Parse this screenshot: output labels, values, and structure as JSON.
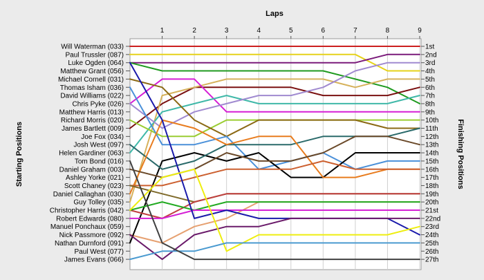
{
  "chart_data": {
    "type": "line",
    "title": "Laps",
    "ylabel_left": "Starting Positions",
    "ylabel_right": "Finishing Positions",
    "laps": [
      "1",
      "2",
      "3",
      "4",
      "5",
      "6",
      "7",
      "8",
      "9"
    ],
    "x_range": [
      0,
      9
    ],
    "y_range": [
      1,
      27
    ],
    "start_labels": [
      "Will Waterman (033)",
      "Paul Trussler (087)",
      "Luke Ogden (064)",
      "Matthew Grant (056)",
      "Michael Cornell (031)",
      "Thomas Isham (036)",
      "David Williams (022)",
      "Chris Pyke (026)",
      "Matthew Harris (013)",
      "Richard Morris (020)",
      "James Bartlett (009)",
      "Joe Fox (034)",
      "Josh West (097)",
      "Helen Gardiner (063)",
      "Tom Bond (016)",
      "Daniel Graham (003)",
      "Ashley Yorke (021)",
      "Scott Chaney (023)",
      "Daniel Callaghan (030)",
      "Guy Tolley (035)",
      "Christopher Harris (042)",
      "Robert Edwards (080)",
      "Manuel Ponchaux (059)",
      "Nick Passmore (092)",
      "Nathan Durnford (091)",
      "Paul West (077)",
      "James Evans (066)"
    ],
    "finish_labels": [
      "1st",
      "2nd",
      "3rd",
      "4th",
      "5th",
      "6th",
      "7th",
      "8th",
      "9th",
      "10th",
      "11th",
      "12th",
      "13th",
      "14th",
      "15th",
      "16th",
      "17th",
      "18th",
      "19th",
      "20th",
      "21st",
      "22nd",
      "23rd",
      "24th",
      "25th",
      "26th",
      "27th"
    ],
    "series": [
      {
        "color": "#cc1f1f",
        "positions": [
          1,
          1,
          1,
          1,
          1,
          1,
          1,
          1,
          1,
          1
        ]
      },
      {
        "color": "#e6d21a",
        "positions": [
          2,
          2,
          2,
          2,
          2,
          2,
          2,
          2,
          4,
          4
        ]
      },
      {
        "color": "#7a1a7a",
        "positions": [
          3,
          3,
          3,
          3,
          3,
          3,
          3,
          3,
          2,
          2
        ]
      },
      {
        "color": "#1f9a1f",
        "positions": [
          3,
          4,
          4,
          4,
          4,
          4,
          4,
          5,
          6,
          8
        ]
      },
      {
        "color": "#e6a070",
        "positions": [
          24,
          25,
          23,
          22,
          20,
          20,
          20,
          20,
          20,
          20
        ]
      },
      {
        "color": "#7a1010",
        "positions": [
          11,
          8,
          6,
          6,
          6,
          6,
          7,
          7,
          7,
          6
        ]
      },
      {
        "color": "#d6b25c",
        "positions": [
          20,
          7,
          6,
          5,
          5,
          5,
          5,
          6,
          5,
          5
        ]
      },
      {
        "color": "#d51fd5",
        "positions": [
          8,
          5,
          5,
          9,
          9,
          9,
          9,
          9,
          9,
          9
        ]
      },
      {
        "color": "#3fb8a8",
        "positions": [
          14,
          9,
          8,
          7,
          8,
          8,
          8,
          8,
          8,
          7
        ]
      },
      {
        "color": "#9acd32",
        "positions": [
          10,
          12,
          12,
          10,
          10,
          10,
          10,
          10,
          10,
          10
        ]
      },
      {
        "color": "#a08ad0",
        "positions": [
          8,
          11,
          9,
          8,
          7,
          7,
          6,
          4,
          3,
          3
        ]
      },
      {
        "color": "#8b6914",
        "positions": [
          5,
          6,
          10,
          12,
          10,
          10,
          10,
          10,
          11,
          11
        ]
      },
      {
        "color": "#4a90d9",
        "positions": [
          6,
          13,
          13,
          12,
          16,
          15,
          14,
          16,
          15,
          15
        ]
      },
      {
        "color": "#000000",
        "positions": [
          25,
          15,
          14,
          15,
          14,
          17,
          17,
          14,
          14,
          14
        ]
      },
      {
        "color": "#2a6a6a",
        "positions": [
          13,
          16,
          15,
          13,
          13,
          13,
          12,
          12,
          12,
          11
        ]
      },
      {
        "color": "#e87c1e",
        "positions": [
          19,
          10,
          11,
          13,
          12,
          12,
          17,
          17,
          16,
          16
        ]
      },
      {
        "color": "#6b4a2a",
        "positions": [
          16,
          17,
          16,
          14,
          15,
          15,
          14,
          12,
          12,
          13
        ]
      },
      {
        "color": "#cc6030",
        "positions": [
          18,
          18,
          17,
          16,
          16,
          16,
          15,
          16,
          16,
          16
        ]
      },
      {
        "color": "#7f6a2a",
        "positions": [
          18,
          19,
          20,
          19,
          19,
          19,
          19,
          19,
          19,
          19
        ]
      },
      {
        "color": "#c04040",
        "positions": [
          21,
          22,
          20,
          19,
          19,
          19,
          19,
          19,
          19,
          19
        ]
      },
      {
        "color": "#22aa22",
        "positions": [
          21,
          20,
          21,
          20,
          20,
          20,
          20,
          20,
          20,
          20
        ]
      },
      {
        "color": "#d51fd5",
        "positions": [
          22,
          22,
          21,
          21,
          21,
          21,
          21,
          21,
          21,
          21
        ]
      },
      {
        "color": "#1a1aaa",
        "positions": [
          3,
          10,
          22,
          21,
          22,
          22,
          22,
          22,
          22,
          24
        ]
      },
      {
        "color": "#6a1a6a",
        "positions": [
          24,
          27,
          24,
          23,
          23,
          22,
          22,
          22,
          22,
          22
        ]
      },
      {
        "color": "#eeee10",
        "positions": [
          21,
          17,
          16,
          26,
          24,
          24,
          24,
          24,
          24,
          23
        ]
      },
      {
        "color": "#4a9ad0",
        "positions": [
          27,
          26,
          26,
          25,
          25,
          25,
          25,
          25,
          25,
          25
        ]
      },
      {
        "color": "#404040",
        "positions": [
          15,
          25,
          27,
          27,
          27,
          27,
          27,
          27,
          27,
          27
        ]
      }
    ]
  }
}
